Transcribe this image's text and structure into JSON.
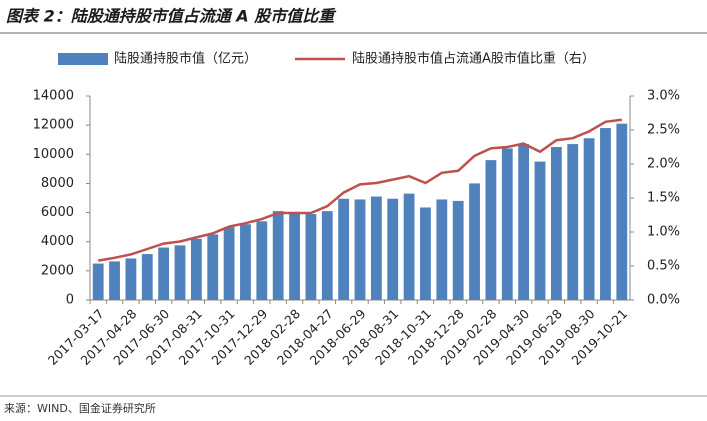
{
  "chart_data": {
    "type": "bar-line",
    "title": "图表 2：陆股通持股市值占流通 A 股市值比重",
    "source": "来源：WIND、国金证券研究所",
    "categories": [
      "2017-03-17",
      null,
      "2017-04-28",
      null,
      "2017-06-30",
      null,
      "2017-08-31",
      null,
      "2017-10-31",
      null,
      "2017-12-29",
      null,
      "2018-02-28",
      null,
      "2018-04-27",
      null,
      "2018-06-29",
      null,
      "2018-08-31",
      null,
      "2018-10-31",
      null,
      "2018-12-28",
      null,
      "2019-02-28",
      null,
      "2019-04-30",
      null,
      "2019-06-28",
      null,
      "2019-08-30",
      null,
      "2019-10-21"
    ],
    "series": [
      {
        "name": "陆股通持股市值（亿元）",
        "color": "#4f81bd",
        "type": "bar",
        "values": [
          2500,
          2650,
          2850,
          3150,
          3600,
          3750,
          4200,
          4500,
          5000,
          5200,
          5400,
          6100,
          6000,
          5900,
          6100,
          6950,
          6900,
          7100,
          6950,
          7300,
          6350,
          6900,
          6800,
          8000,
          9600,
          10400,
          10700,
          9500,
          10500,
          10700,
          11100,
          11800,
          12100
        ]
      },
      {
        "name": "陆股通持股市值占流通A股市值比重（右）",
        "color": "#c0504d",
        "type": "line",
        "axis": "y2",
        "values": [
          0.58,
          0.62,
          0.67,
          0.75,
          0.83,
          0.86,
          0.92,
          0.98,
          1.08,
          1.13,
          1.19,
          1.28,
          1.28,
          1.28,
          1.38,
          1.58,
          1.7,
          1.72,
          1.77,
          1.82,
          1.72,
          1.87,
          1.9,
          2.12,
          2.23,
          2.25,
          2.3,
          2.18,
          2.35,
          2.38,
          2.48,
          2.62,
          2.65
        ]
      }
    ],
    "ylim": [
      0,
      14000
    ],
    "yticks": [
      0,
      2000,
      4000,
      6000,
      8000,
      10000,
      12000,
      14000
    ],
    "y2lim": [
      0,
      3
    ],
    "y2ticks": [
      {
        "value": 0,
        "label": "0.0%"
      },
      {
        "value": 0.5,
        "label": "0.5%"
      },
      {
        "value": 1,
        "label": "1.0%"
      },
      {
        "value": 1.5,
        "label": "1.5%"
      },
      {
        "value": 2,
        "label": "2.0%"
      },
      {
        "value": 2.5,
        "label": "2.5%"
      },
      {
        "value": 3,
        "label": "3.0%"
      }
    ],
    "legend": "top"
  }
}
